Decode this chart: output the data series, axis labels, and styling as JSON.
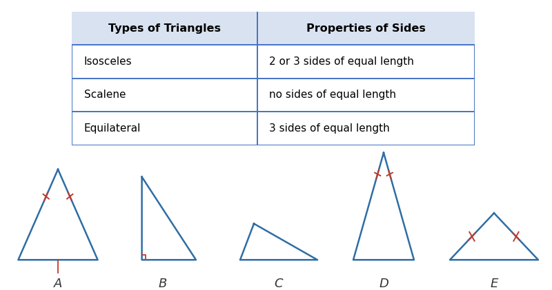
{
  "table": {
    "header": [
      "Types of Triangles",
      "Properties of Sides"
    ],
    "rows": [
      [
        "Isosceles",
        "2 or 3 sides of equal length"
      ],
      [
        "Scalene",
        "no sides of equal length"
      ],
      [
        "Equilateral",
        "3 sides of equal length"
      ]
    ],
    "header_bg": "#d9e2f0",
    "border_color": "#4472c4",
    "header_fontsize": 11.5,
    "row_fontsize": 11,
    "col_split": 0.46
  },
  "triangle_color": "#2e6da4",
  "tick_color": "#c0392b",
  "label_color": "#333333",
  "bg_color": "#ffffff",
  "labels": [
    "A",
    "B",
    "C",
    "D",
    "E"
  ]
}
